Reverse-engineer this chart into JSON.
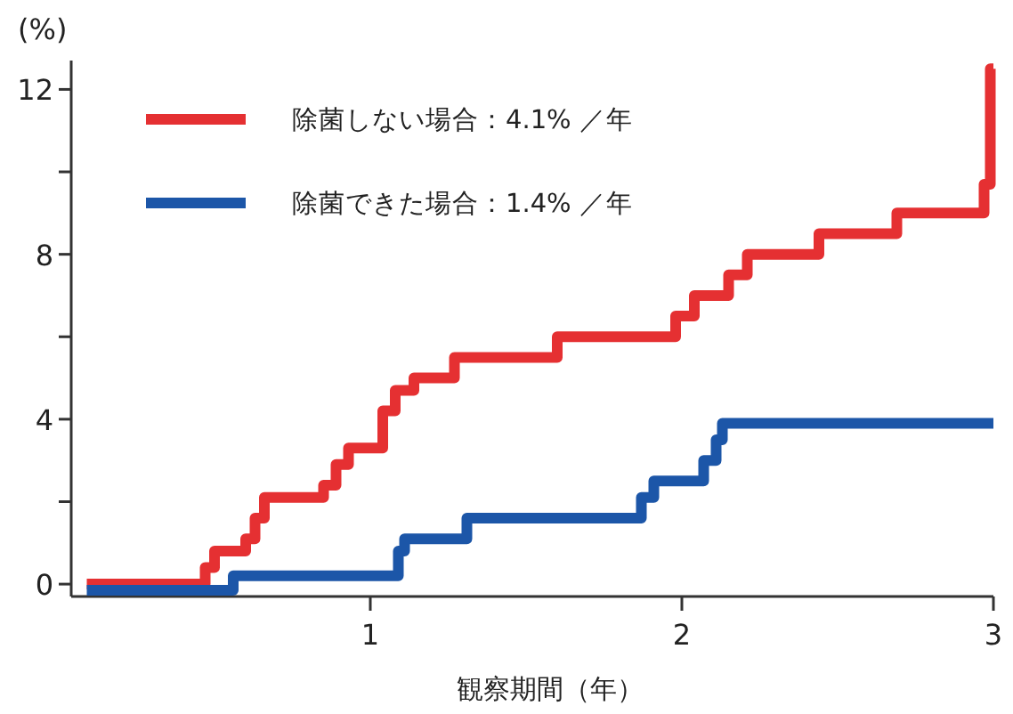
{
  "chart_data": {
    "type": "step",
    "ylabel": "(%)",
    "xlabel": "観察期間（年）",
    "xlim": [
      0.04,
      3.0
    ],
    "xticks": [
      1,
      2,
      3
    ],
    "ylim": [
      -0.3,
      12.7
    ],
    "yticks": [
      0,
      {
        "value": 2,
        "label": null
      },
      4,
      {
        "value": 6,
        "label": null
      },
      8,
      {
        "value": 10,
        "label": null
      },
      12
    ],
    "legend": "top left",
    "grid": false,
    "line_style": "solid",
    "marker": "none",
    "series": [
      {
        "name": "除菌しない場合：4.1% ／年",
        "color": "#e53032",
        "x": [
          0.09,
          0.47,
          0.5,
          0.6,
          0.63,
          0.66,
          0.85,
          0.89,
          0.93,
          1.04,
          1.08,
          1.14,
          1.27,
          1.6,
          1.98,
          2.04,
          2.15,
          2.21,
          2.44,
          2.69,
          2.97,
          2.99,
          3.0
        ],
        "values": [
          0,
          0.4,
          0.8,
          1.1,
          1.6,
          2.1,
          2.4,
          2.9,
          3.3,
          4.2,
          4.7,
          5.0,
          5.5,
          6.0,
          6.5,
          7.0,
          7.5,
          8.0,
          8.5,
          9.0,
          9.7,
          12.5,
          12.5
        ]
      },
      {
        "name": "除菌できた場合：1.4% ／年",
        "color": "#1c56a8",
        "x": [
          0.09,
          0.56,
          1.09,
          1.11,
          1.31,
          1.87,
          1.91,
          2.07,
          2.11,
          2.13,
          3.0
        ],
        "values": [
          -0.15,
          0.2,
          0.8,
          1.1,
          1.6,
          2.1,
          2.5,
          3.0,
          3.5,
          3.9,
          3.9
        ]
      }
    ]
  }
}
